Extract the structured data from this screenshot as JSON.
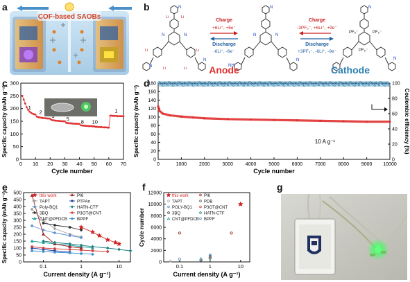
{
  "panels": {
    "a": {
      "letter": "a",
      "label": "COF-based SAOBs"
    },
    "b": {
      "letter": "b",
      "charge_anode": "Charge",
      "charge_anode_eq": "+6Li⁺, +6e⁻",
      "discharge_anode": "Discharge",
      "discharge_anode_eq": "-6Li⁺, -6e⁻",
      "charge_cathode": "Charge",
      "charge_cathode_eq": "-3PF₆⁻, +6Li⁺, +9e⁻",
      "discharge_cathode": "Discharge",
      "discharge_cathode_eq": "+3PF₆⁻, -6Li⁺, -9e⁻",
      "anode_label": "Anode",
      "cathode_label": "Cathode"
    },
    "c": {
      "letter": "c"
    },
    "d": {
      "letter": "d"
    },
    "e": {
      "letter": "e"
    },
    "f": {
      "letter": "f"
    },
    "g": {
      "letter": "g"
    }
  },
  "colors": {
    "anode": "#e03030",
    "cathode": "#2a7fb0",
    "arrow_red": "#c82020",
    "arrow_blue": "#2060a0",
    "cof_orange": "#e8a040",
    "led_green": "#40ff60"
  },
  "chart_data": [
    {
      "panel": "c",
      "type": "scatter",
      "title": "",
      "xlabel": "Cycle number",
      "ylabel": "Specific capacity (mAh g⁻¹)",
      "xlim": [
        0,
        70
      ],
      "ylim": [
        0,
        300
      ],
      "xticks": [
        0,
        10,
        20,
        30,
        40,
        50,
        60,
        70
      ],
      "yticks": [
        0,
        50,
        100,
        150,
        200,
        250,
        300
      ],
      "rate_labels": [
        {
          "text": "1",
          "x": 6,
          "y": 196
        },
        {
          "text": "2",
          "x": 13.5,
          "y": 178
        },
        {
          "text": "3",
          "x": 22,
          "y": 164
        },
        {
          "text": "5",
          "x": 32,
          "y": 152
        },
        {
          "text": "8",
          "x": 42,
          "y": 140
        },
        {
          "text": "10",
          "x": 50.5,
          "y": 140
        },
        {
          "text": "1",
          "x": 65,
          "y": 184
        }
      ],
      "segments": [
        {
          "x_start": 1,
          "x_end": 10,
          "y": [
            250,
            235,
            220,
            205,
            195,
            188,
            183,
            180,
            178,
            176
          ]
        },
        {
          "x_start": 11,
          "x_end": 20,
          "y": [
            168,
            166,
            165,
            164,
            163,
            162,
            162,
            161,
            161,
            160
          ]
        },
        {
          "x_start": 21,
          "x_end": 30,
          "y": [
            155,
            154,
            153,
            152,
            152,
            151,
            151,
            150,
            150,
            150
          ]
        },
        {
          "x_start": 31,
          "x_end": 40,
          "y": [
            144,
            143,
            142,
            142,
            141,
            141,
            140,
            140,
            140,
            139
          ]
        },
        {
          "x_start": 41,
          "x_end": 50,
          "y": [
            134,
            133,
            133,
            132,
            132,
            131,
            131,
            131,
            130,
            130
          ]
        },
        {
          "x_start": 51,
          "x_end": 60,
          "y": [
            128,
            128,
            127,
            127,
            127,
            126,
            126,
            126,
            125,
            125
          ]
        },
        {
          "x_start": 61,
          "x_end": 70,
          "y": [
            172,
            172,
            171,
            171,
            171,
            170,
            170,
            170,
            170,
            169
          ]
        }
      ]
    },
    {
      "panel": "d",
      "type": "scatter",
      "title": "",
      "xlabel": "Cycle number",
      "ylabel": "Specific capacity (mAh g⁻¹)",
      "y2label": "Coulombic efficiency (%)",
      "xlim": [
        0,
        10000
      ],
      "ylim": [
        0,
        180
      ],
      "y2lim": [
        0,
        100
      ],
      "xticks": [
        0,
        1000,
        2000,
        3000,
        4000,
        5000,
        6000,
        7000,
        8000,
        9000,
        10000
      ],
      "yticks": [
        0,
        20,
        40,
        60,
        80,
        100,
        120,
        140,
        160,
        180
      ],
      "y2ticks": [
        0,
        20,
        40,
        60,
        80,
        100
      ],
      "annotation": "10 A g⁻¹",
      "capacity": {
        "x": [
          0,
          50,
          200,
          500,
          1000,
          1500,
          2000,
          3000,
          4000,
          5000,
          6000,
          7000,
          8000,
          9000,
          10000
        ],
        "y": [
          125,
          115,
          108,
          104,
          101,
          99,
          97,
          95,
          94,
          93,
          92,
          91,
          90,
          89,
          89
        ]
      },
      "efficiency": {
        "x": [
          0,
          10000
        ],
        "y": [
          99,
          99
        ]
      }
    },
    {
      "panel": "e",
      "type": "line",
      "title": "",
      "xlabel": "Current density (A g⁻¹)",
      "ylabel": "Specific capacity (mAh g⁻¹)",
      "xscale": "log",
      "xlim": [
        0.03,
        20
      ],
      "ylim": [
        0,
        500
      ],
      "xticks": [
        0.1,
        1,
        10
      ],
      "xticklabels": [
        "0.1",
        "1",
        "10"
      ],
      "yticks": [
        0,
        50,
        100,
        150,
        200,
        250,
        300,
        350,
        400,
        450,
        500
      ],
      "legend_position": "top",
      "series": [
        {
          "name": "this work",
          "color": "#d02020",
          "marker": "star",
          "x": [
            1,
            2,
            3,
            5,
            8,
            10
          ],
          "y": [
            250,
            215,
            190,
            160,
            140,
            130
          ]
        },
        {
          "name": "TAPT",
          "color": "#a0a0a0",
          "marker": "circle",
          "x": [
            0.05,
            0.1,
            0.2,
            0.5,
            1
          ],
          "y": [
            380,
            300,
            240,
            200,
            180
          ]
        },
        {
          "name": "Poly-BQ1",
          "color": "#6090d0",
          "marker": "circle",
          "x": [
            0.05,
            0.1,
            0.2,
            0.5,
            1
          ],
          "y": [
            260,
            230,
            210,
            190,
            175
          ]
        },
        {
          "name": "3BQ",
          "color": "#303030",
          "marker": "circle",
          "x": [
            0.1,
            0.2,
            0.5,
            1
          ],
          "y": [
            280,
            265,
            250,
            230
          ]
        },
        {
          "name": "CNT@PFDCB",
          "color": "#20a0a0",
          "marker": "triangle",
          "x": [
            0.05,
            0.1,
            0.2,
            0.5,
            1,
            2
          ],
          "y": [
            150,
            140,
            130,
            120,
            110,
            100
          ]
        },
        {
          "name": "PI6",
          "color": "#a02020",
          "marker": "triangle",
          "x": [
            0.05,
            0.1,
            0.2,
            0.5,
            1
          ],
          "y": [
            480,
            200,
            130,
            110,
            100
          ]
        },
        {
          "name": "PTPAn",
          "color": "#2040a0",
          "marker": "circle",
          "x": [
            0.05,
            0.1,
            0.2,
            0.5
          ],
          "y": [
            100,
            90,
            80,
            70
          ]
        },
        {
          "name": "HATN-CTF",
          "color": "#208080",
          "marker": "diamond",
          "x": [
            0.1,
            0.2,
            0.5,
            1,
            2,
            5,
            10,
            20
          ],
          "y": [
            150,
            140,
            130,
            120,
            110,
            100,
            90,
            80
          ]
        },
        {
          "name": "P3OT@CNT",
          "color": "#d04040",
          "marker": "circle",
          "x": [
            0.05,
            0.1,
            0.2,
            0.5,
            1,
            2,
            5
          ],
          "y": [
            110,
            100,
            95,
            90,
            85,
            80,
            75
          ]
        },
        {
          "name": "BPPF",
          "color": "#4090d0",
          "marker": "circle",
          "x": [
            0.05,
            0.1,
            0.2,
            0.5,
            1,
            2
          ],
          "y": [
            80,
            75,
            70,
            65,
            60,
            55
          ]
        }
      ]
    },
    {
      "panel": "f",
      "type": "scatter",
      "title": "",
      "xlabel": "Current density (A g⁻¹)",
      "ylabel": "Cycle number",
      "xscale": "log",
      "xlim": [
        0.03,
        20
      ],
      "ylim": [
        0,
        12000
      ],
      "xticks": [
        0.1,
        1,
        10
      ],
      "xticklabels": [
        "0.1",
        "1",
        "10"
      ],
      "yticks": [
        0,
        2000,
        4000,
        6000,
        8000,
        10000,
        12000
      ],
      "legend_position": "top-left",
      "series": [
        {
          "name": "this work",
          "color": "#d02020",
          "marker": "star",
          "x": [
            10
          ],
          "y": [
            10000
          ]
        },
        {
          "name": "TAPT",
          "color": "#a0a0a0",
          "marker": "circle",
          "x": [
            0.05
          ],
          "y": [
            150
          ]
        },
        {
          "name": "POLY-BQ1",
          "color": "#6090d0",
          "marker": "circle",
          "x": [
            0.1
          ],
          "y": [
            500
          ]
        },
        {
          "name": "3BQ",
          "color": "#303030",
          "marker": "circle",
          "x": [
            1
          ],
          "y": [
            1000
          ]
        },
        {
          "name": "CNT@PFDCB",
          "color": "#20a0a0",
          "marker": "triangle",
          "x": [
            0.5
          ],
          "y": [
            500
          ]
        },
        {
          "name": "PI6",
          "color": "#a02020",
          "marker": "circle",
          "x": [
            0.1,
            5
          ],
          "y": [
            5000,
            5000
          ]
        },
        {
          "name": "PDB",
          "color": "#505050",
          "marker": "circle",
          "x": [
            0.5
          ],
          "y": [
            300
          ]
        },
        {
          "name": "P3OT@CNT",
          "color": "#d04040",
          "marker": "circle",
          "x": [
            1
          ],
          "y": [
            800
          ]
        },
        {
          "name": "HATN-CTF",
          "color": "#208080",
          "marker": "diamond",
          "x": [
            1
          ],
          "y": [
            600
          ]
        },
        {
          "name": "BPPF",
          "color": "#4090d0",
          "marker": "circle",
          "x": [
            1
          ],
          "y": [
            1200
          ]
        }
      ]
    }
  ]
}
